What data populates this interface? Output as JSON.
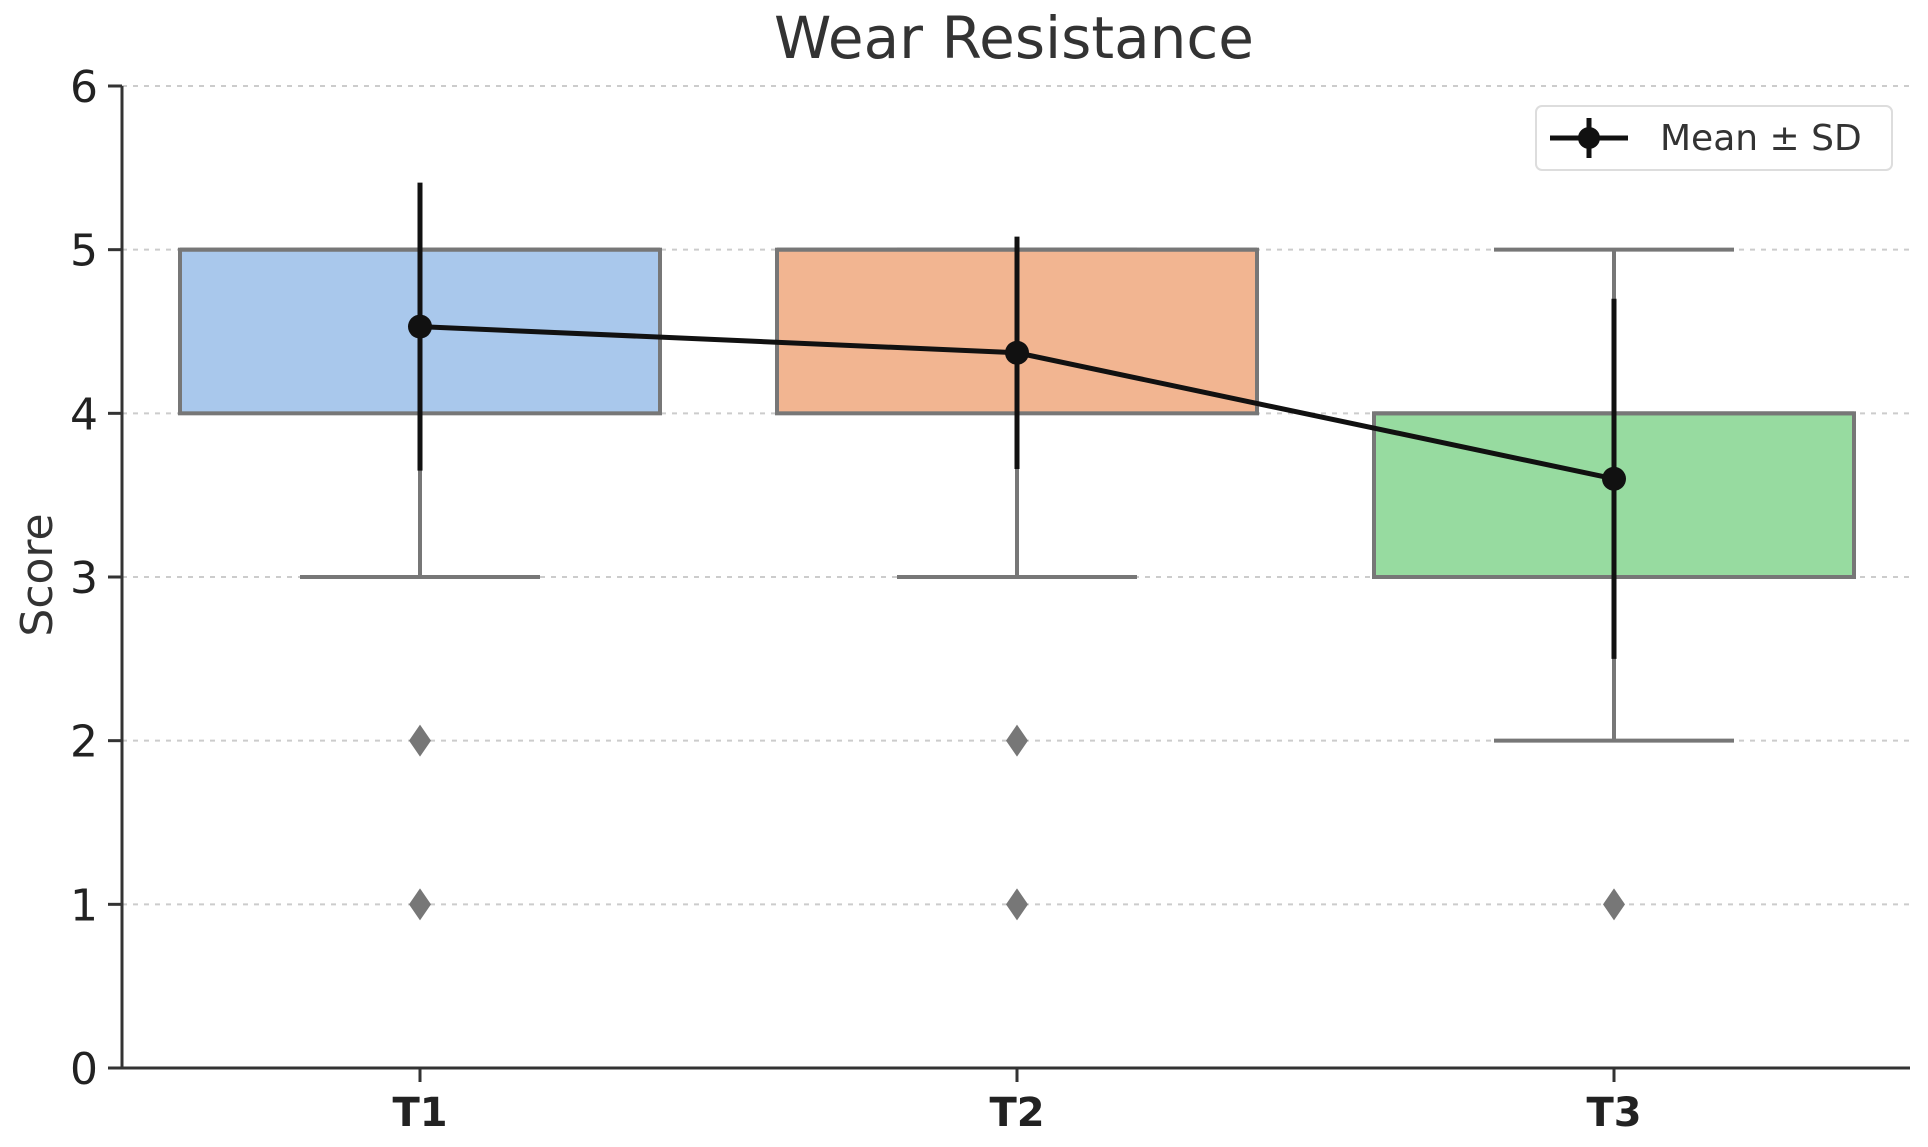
{
  "chart_data": {
    "type": "box",
    "title": "Wear Resistance",
    "xlabel": "",
    "ylabel": "Score",
    "ylim": [
      0,
      6
    ],
    "yticks": [
      0,
      1,
      2,
      3,
      4,
      5,
      6
    ],
    "categories": [
      "T1",
      "T2",
      "T3"
    ],
    "grid": "horizontal dotted",
    "legend_position": "top-right",
    "boxes": [
      {
        "category": "T1",
        "q1": 4,
        "median": 5,
        "q3": 5,
        "whisker_low": 3,
        "whisker_high": 5,
        "outliers": [
          2,
          1
        ],
        "color": "#a9c8ec"
      },
      {
        "category": "T2",
        "q1": 4,
        "median": 5,
        "q3": 5,
        "whisker_low": 3,
        "whisker_high": 5,
        "outliers": [
          2,
          1
        ],
        "color": "#f2b591"
      },
      {
        "category": "T3",
        "q1": 3,
        "median": 4,
        "q3": 4,
        "whisker_low": 2,
        "whisker_high": 5,
        "outliers": [
          1
        ],
        "color": "#97dba0"
      }
    ],
    "series": [
      {
        "name": "Mean ± SD",
        "values": [
          4.53,
          4.37,
          3.6
        ],
        "sd": [
          0.88,
          0.71,
          1.1
        ],
        "color": "#111111"
      }
    ]
  }
}
